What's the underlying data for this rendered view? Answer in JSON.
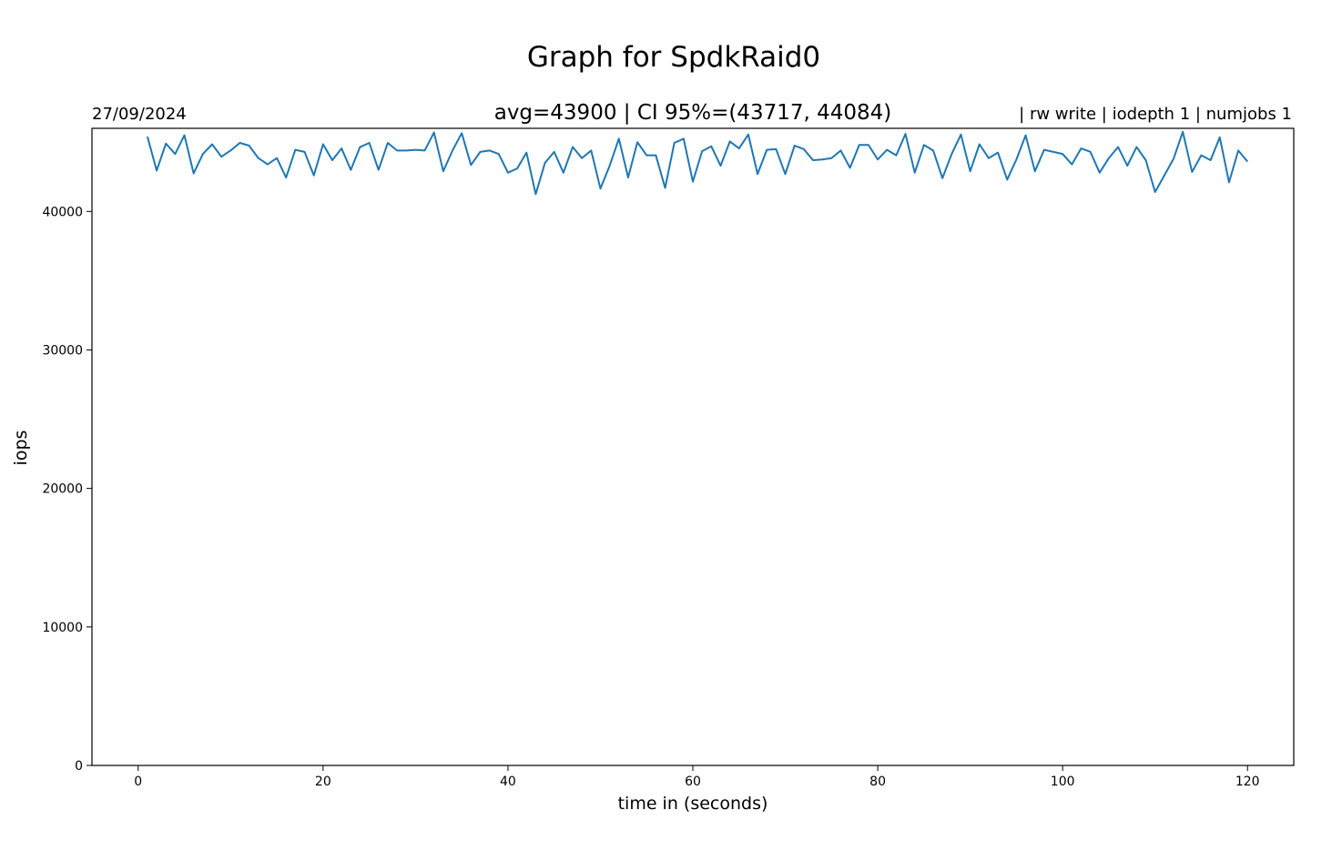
{
  "chart_data": {
    "type": "line",
    "title": "Graph for SpdkRaid0",
    "date": "27/09/2024",
    "stats": "avg=43900 | CI 95%=(43717, 44084)",
    "params": "| rw write | iodepth 1 | numjobs 1",
    "xlabel": "time in (seconds)",
    "ylabel": "iops",
    "xlim": [
      -5,
      125
    ],
    "ylim": [
      0,
      46000
    ],
    "xticks": [
      "0",
      "20",
      "40",
      "60",
      "80",
      "100",
      "120"
    ],
    "xtick_values": [
      0,
      20,
      40,
      60,
      80,
      100,
      120
    ],
    "yticks": [
      "0",
      "10000",
      "20000",
      "30000",
      "40000"
    ],
    "ytick_values": [
      0,
      10000,
      20000,
      30000,
      40000
    ],
    "grid": false,
    "series": [
      {
        "color": "#1f77b4",
        "x": [
          1,
          2,
          3,
          4,
          5,
          6,
          7,
          8,
          9,
          10,
          11,
          12,
          13,
          14,
          15,
          16,
          17,
          18,
          19,
          20,
          21,
          22,
          23,
          24,
          25,
          26,
          27,
          28,
          29,
          30,
          31,
          32,
          33,
          34,
          35,
          36,
          37,
          38,
          39,
          40,
          41,
          42,
          43,
          44,
          45,
          46,
          47,
          48,
          49,
          50,
          51,
          52,
          53,
          54,
          55,
          56,
          57,
          58,
          59,
          60,
          61,
          62,
          63,
          64,
          65,
          66,
          67,
          68,
          69,
          70,
          71,
          72,
          73,
          74,
          75,
          76,
          77,
          78,
          79,
          80,
          81,
          82,
          83,
          84,
          85,
          86,
          87,
          88,
          89,
          90,
          91,
          92,
          93,
          94,
          95,
          96,
          97,
          98,
          99,
          100,
          101,
          102,
          103,
          104,
          105,
          106,
          107,
          108,
          109,
          110,
          111,
          112,
          113,
          114,
          115,
          116,
          117,
          118,
          119,
          120
        ],
        "values": [
          45400,
          42950,
          44900,
          44150,
          45500,
          42750,
          44150,
          44850,
          43950,
          44400,
          44950,
          44750,
          43850,
          43400,
          43850,
          42450,
          44450,
          44300,
          42600,
          44850,
          43700,
          44550,
          43000,
          44650,
          44950,
          43000,
          44950,
          44400,
          44400,
          44450,
          44400,
          45700,
          42900,
          44400,
          45650,
          43350,
          44300,
          44400,
          44150,
          42800,
          43100,
          44250,
          41250,
          43500,
          44300,
          42800,
          44650,
          43850,
          44400,
          41650,
          43300,
          45250,
          42450,
          45000,
          44050,
          44050,
          41700,
          44950,
          45250,
          42150,
          44350,
          44700,
          43300,
          45050,
          44550,
          45550,
          42700,
          44450,
          44500,
          42700,
          44750,
          44500,
          43700,
          43750,
          43850,
          44400,
          43150,
          44800,
          44800,
          43750,
          44450,
          44050,
          45600,
          42800,
          44800,
          44400,
          42400,
          44150,
          45550,
          42900,
          44850,
          43850,
          44250,
          42300,
          43750,
          45500,
          42900,
          44450,
          44300,
          44150,
          43400,
          44550,
          44300,
          42800,
          43850,
          44650,
          43300,
          44650,
          43700,
          41400,
          42600,
          43800,
          45750,
          42850,
          44050,
          43700,
          45350,
          42100,
          44400,
          43600
        ]
      }
    ]
  }
}
